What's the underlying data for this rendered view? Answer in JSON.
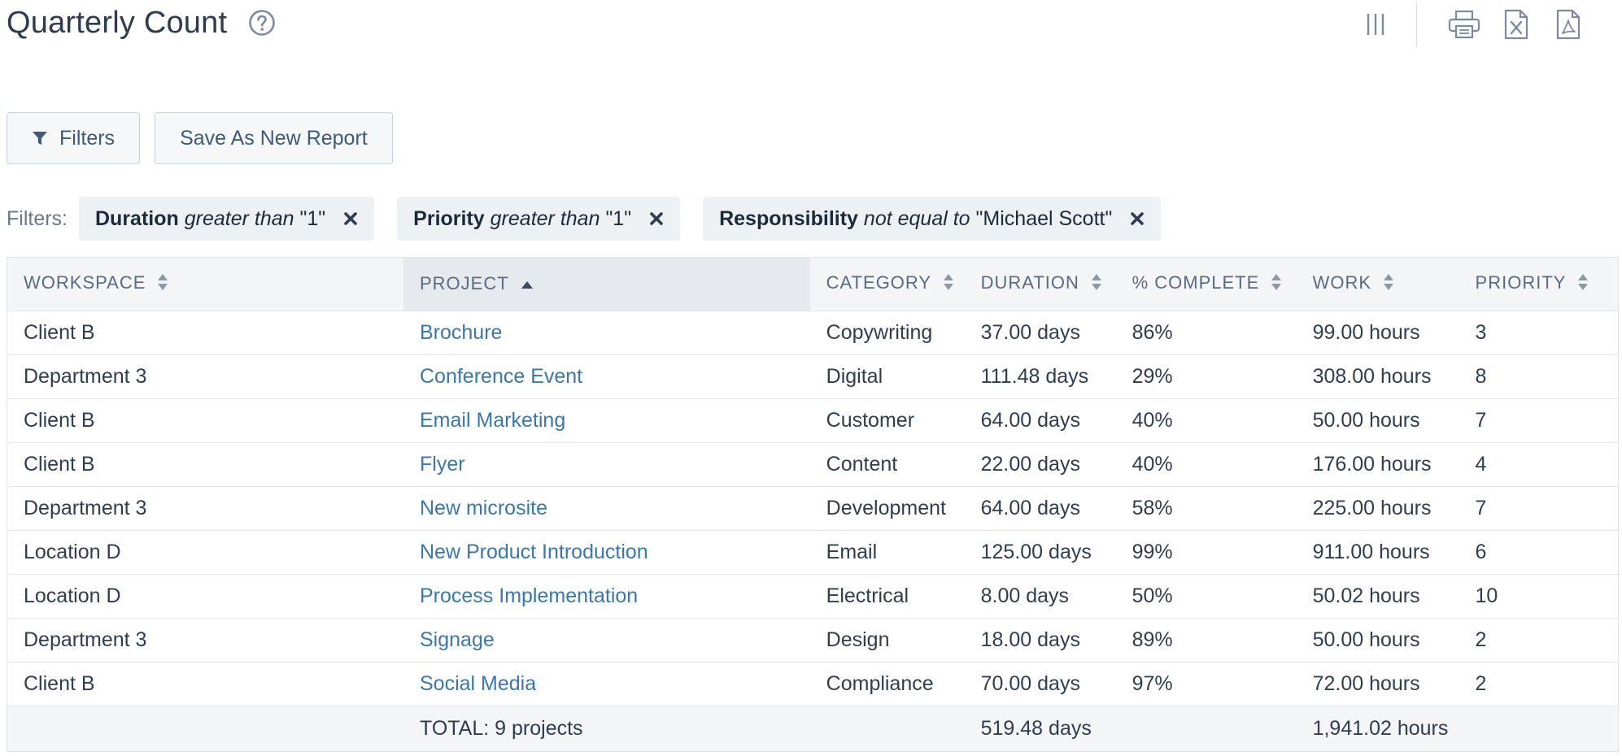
{
  "header": {
    "title": "Quarterly Count",
    "help_icon": "help-circle-icon",
    "icons": [
      "columns-icon",
      "print-icon",
      "excel-export-icon",
      "pdf-export-icon"
    ]
  },
  "toolbar": {
    "filters_label": "Filters",
    "save_label": "Save As New Report"
  },
  "filters": {
    "label": "Filters:",
    "chips": [
      {
        "field": "Duration",
        "op": "greater than",
        "value": "\"1\""
      },
      {
        "field": "Priority",
        "op": "greater than",
        "value": "\"1\""
      },
      {
        "field": "Responsibility",
        "op": "not equal to",
        "value": "\"Michael Scott\""
      }
    ]
  },
  "table": {
    "sorted_column": "PROJECT",
    "sort_direction": "ascending",
    "headers": [
      "WORKSPACE",
      "PROJECT",
      "CATEGORY",
      "DURATION",
      "% COMPLETE",
      "WORK",
      "PRIORITY"
    ],
    "rows": [
      [
        "Client B",
        "Brochure",
        "Copywriting",
        "37.00 days",
        "86%",
        "99.00 hours",
        "3"
      ],
      [
        "Department 3",
        "Conference Event",
        "Digital",
        "111.48 days",
        "29%",
        "308.00 hours",
        "8"
      ],
      [
        "Client B",
        "Email Marketing",
        "Customer",
        "64.00 days",
        "40%",
        "50.00 hours",
        "7"
      ],
      [
        "Client B",
        "Flyer",
        "Content",
        "22.00 days",
        "40%",
        "176.00 hours",
        "4"
      ],
      [
        "Department 3",
        "New microsite",
        "Development",
        "64.00 days",
        "58%",
        "225.00 hours",
        "7"
      ],
      [
        "Location D",
        "New Product Introduction",
        "Email",
        "125.00 days",
        "99%",
        "911.00 hours",
        "6"
      ],
      [
        "Location D",
        "Process Implementation",
        "Electrical",
        "8.00 days",
        "50%",
        "50.02 hours",
        "10"
      ],
      [
        "Department 3",
        "Signage",
        "Design",
        "18.00 days",
        "89%",
        "50.00 hours",
        "2"
      ],
      [
        "Client B",
        "Social Media",
        "Compliance",
        "70.00 days",
        "97%",
        "72.00 hours",
        "2"
      ]
    ],
    "total": {
      "label": "TOTAL: 9 projects",
      "duration": "519.48 days",
      "work": "1,941.02 hours"
    }
  },
  "colors": {
    "link": "#3a76b0",
    "text": "#2f3d4f",
    "header_bg": "#f3f5f7",
    "sorted_header_bg": "#e6e9ed",
    "chip_bg": "#eef1f4"
  }
}
